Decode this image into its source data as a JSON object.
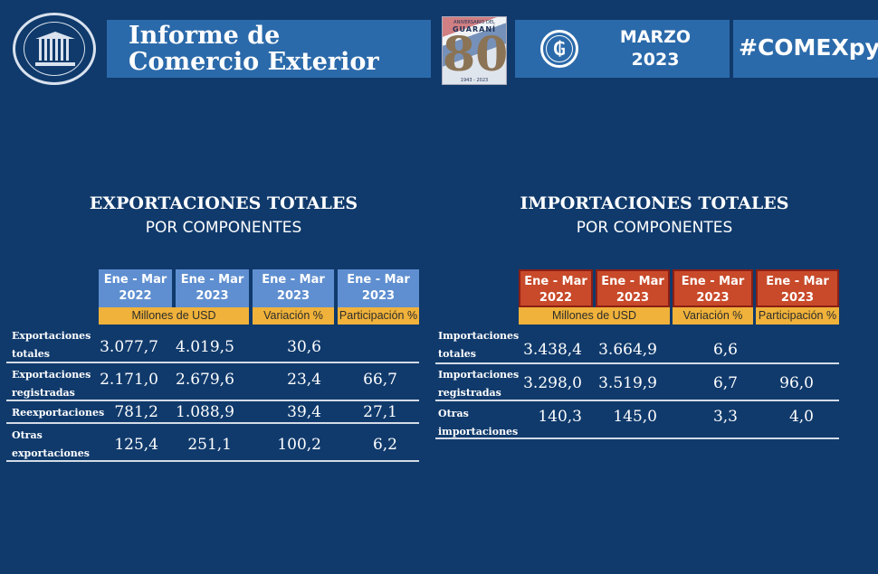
{
  "header": {
    "title_line1": "Informe de",
    "title_line2": "Comercio Exterior",
    "badge": {
      "top_small": "ANIVERSARIO DEL",
      "top_name": "GUARANÍ",
      "number": "80",
      "years": "1943 - 2023"
    },
    "currency_icon": "guarani-coin-icon",
    "month": "MARZO",
    "year": "2023",
    "hashtag": "#COMEXpy"
  },
  "colors": {
    "background": "#103a6c",
    "band": "#2b6aaa",
    "export_header": "#5f8fd0",
    "import_header": "#c84a2a",
    "unit_bar": "#f0b23a"
  },
  "exports": {
    "title": "EXPORTACIONES TOTALES",
    "subtitle": "POR COMPONENTES",
    "columns": [
      {
        "line1": "Ene - Mar",
        "line2": "2022"
      },
      {
        "line1": "Ene - Mar",
        "line2": "2023"
      },
      {
        "line1": "Ene - Mar",
        "line2": "2023"
      },
      {
        "line1": "Ene - Mar",
        "line2": "2023"
      }
    ],
    "units": [
      "Millones de USD",
      "Variación %",
      "Participación %"
    ],
    "rows": [
      {
        "label1": "Exportaciones",
        "label2": "totales",
        "v2022": "3.077,7",
        "v2023": "4.019,5",
        "var": "30,6",
        "part": ""
      },
      {
        "label1": "Exportaciones",
        "label2": "registradas",
        "v2022": "2.171,0",
        "v2023": "2.679,6",
        "var": "23,4",
        "part": "66,7"
      },
      {
        "label1": "Reexportaciones",
        "label2": "",
        "v2022": "781,2",
        "v2023": "1.088,9",
        "var": "39,4",
        "part": "27,1"
      },
      {
        "label1": "Otras",
        "label2": "exportaciones",
        "v2022": "125,4",
        "v2023": "251,1",
        "var": "100,2",
        "part": "6,2"
      }
    ]
  },
  "imports": {
    "title": "IMPORTACIONES TOTALES",
    "subtitle": "POR COMPONENTES",
    "columns": [
      {
        "line1": "Ene - Mar",
        "line2": "2022"
      },
      {
        "line1": "Ene - Mar",
        "line2": "2023"
      },
      {
        "line1": "Ene - Mar",
        "line2": "2023"
      },
      {
        "line1": "Ene - Mar",
        "line2": "2023"
      }
    ],
    "units": [
      "Millones de USD",
      "Variación %",
      "Participación %"
    ],
    "rows": [
      {
        "label1": "Importaciones",
        "label2": "totales",
        "v2022": "3.438,4",
        "v2023": "3.664,9",
        "var": "6,6",
        "part": ""
      },
      {
        "label1": "Importaciones",
        "label2": "registradas",
        "v2022": "3.298,0",
        "v2023": "3.519,9",
        "var": "6,7",
        "part": "96,0"
      },
      {
        "label1": "Otras",
        "label2": "importaciones",
        "v2022": "140,3",
        "v2023": "145,0",
        "var": "3,3",
        "part": "4,0"
      }
    ]
  }
}
